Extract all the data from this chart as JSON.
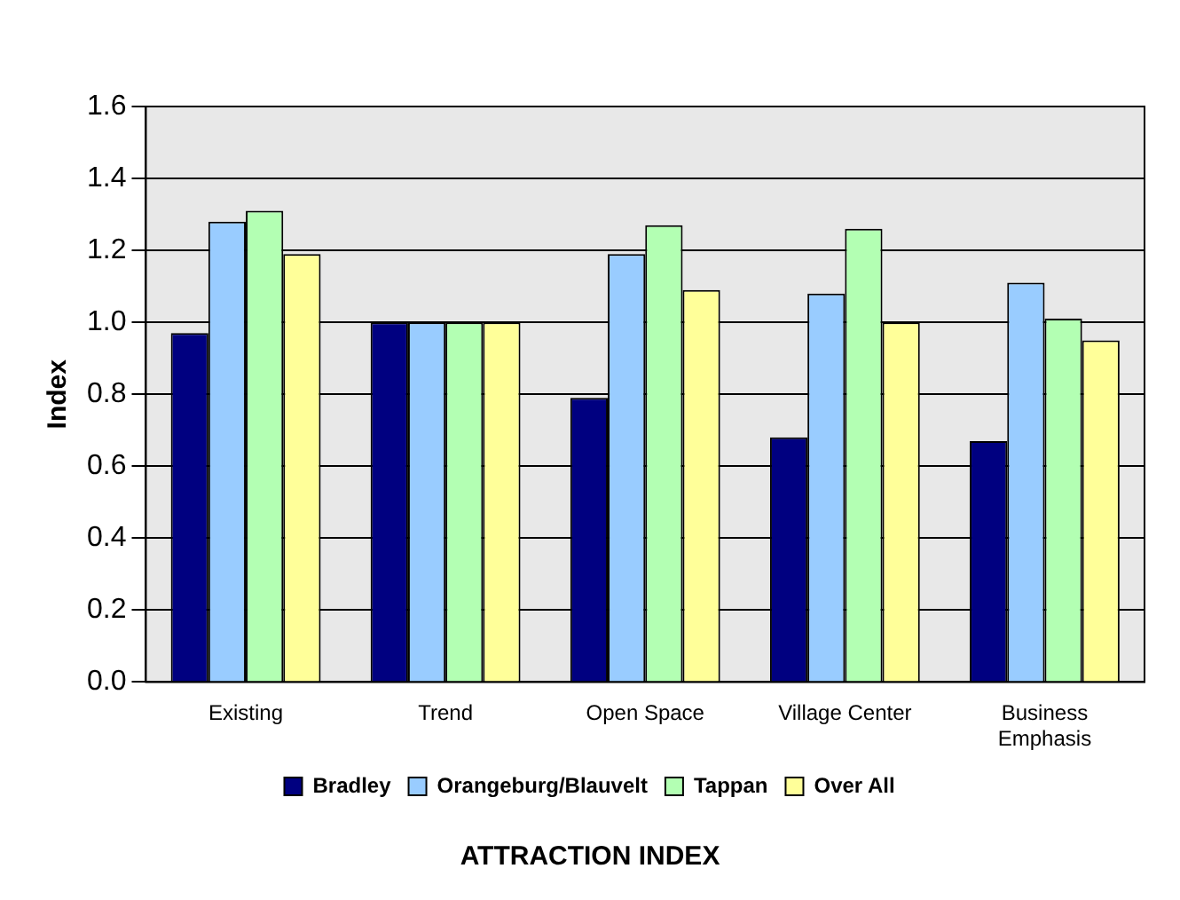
{
  "chart_data": {
    "type": "bar",
    "title": "ATTRACTION INDEX",
    "ylabel": "Index",
    "categories": [
      "Existing",
      "Trend",
      "Open Space",
      "Village Center",
      "Business Emphasis"
    ],
    "series": [
      {
        "name": "Bradley",
        "color": "#000080",
        "values": [
          0.97,
          1.0,
          0.79,
          0.68,
          0.67
        ]
      },
      {
        "name": "Orangeburg/Blauvelt",
        "color": "#99ccff",
        "values": [
          1.28,
          1.0,
          1.19,
          1.08,
          1.11
        ]
      },
      {
        "name": "Tappan",
        "color": "#b3ffb3",
        "values": [
          1.31,
          1.0,
          1.27,
          1.26,
          1.01
        ]
      },
      {
        "name": "Over All",
        "color": "#ffff99",
        "values": [
          1.19,
          1.0,
          1.09,
          1.0,
          0.95
        ]
      }
    ],
    "ylim": [
      0,
      1.6
    ],
    "yticks": [
      {
        "value": 0,
        "label": "0.0"
      },
      {
        "value": 0.2,
        "label": "0.2"
      },
      {
        "value": 0.4,
        "label": "0.4"
      },
      {
        "value": 0.6,
        "label": "0.6"
      },
      {
        "value": 0.8,
        "label": "0.8"
      },
      {
        "value": 1,
        "label": "1.0"
      },
      {
        "value": 1.2,
        "label": "1.2"
      },
      {
        "value": 1.4,
        "label": "1.4"
      },
      {
        "value": 1.6,
        "label": "1.6"
      }
    ],
    "grid": "y",
    "legend": "bottom"
  }
}
